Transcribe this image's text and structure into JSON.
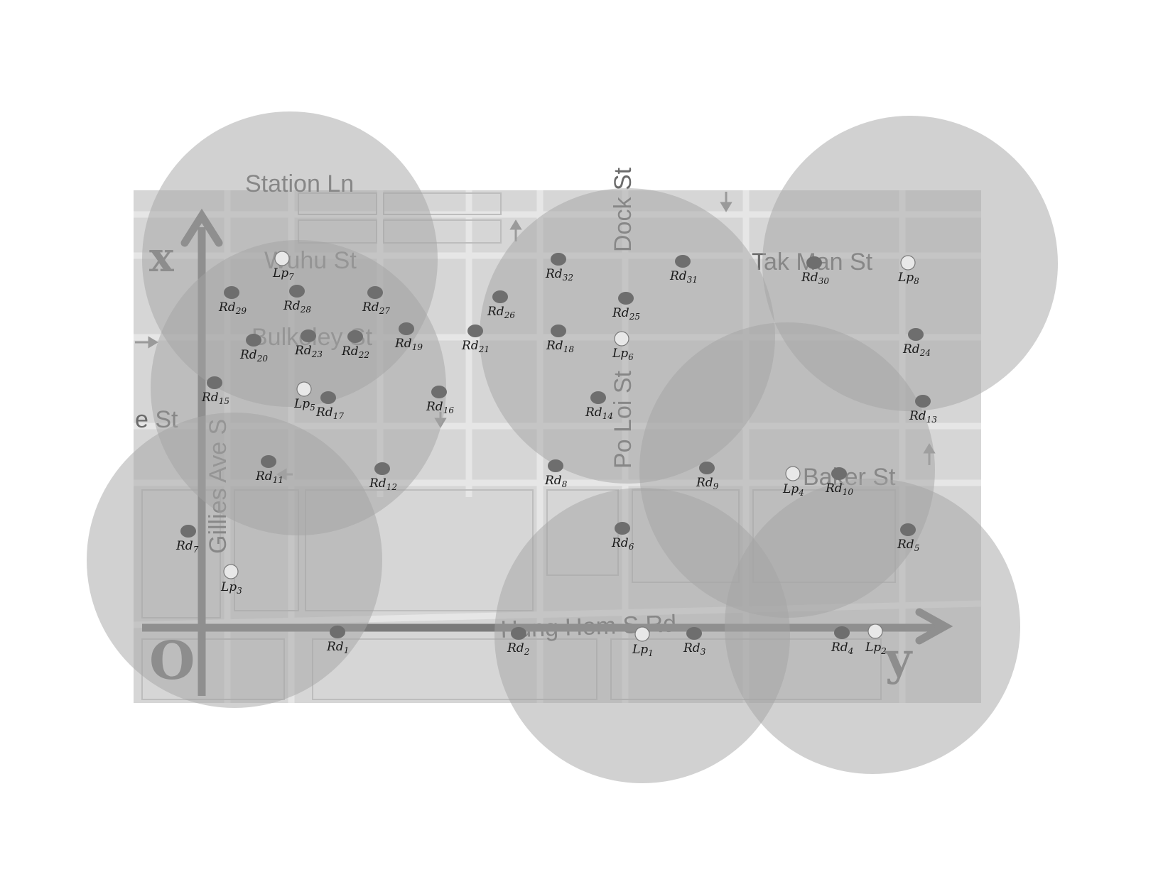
{
  "streets": {
    "wuhu": "Wuhu St",
    "tak_man": "Tak Man St",
    "bulkeley": "Bulkeley St",
    "dock": "Dock St",
    "po_loi": "Po Loi St",
    "gillies": "Gillies Ave S",
    "baker": "Baker St",
    "hung_hom": "Hung Hom S Rd",
    "station": "Station Ln",
    "left_st": "e St"
  },
  "axes": {
    "origin": "O",
    "vertical": "x",
    "horizontal": "y"
  },
  "colors": {
    "background": "#ffffff",
    "map": "#d6d6d6",
    "coverage_circle": "#a8a8a8",
    "road_node": "#6e6e6e",
    "lamp_post": "#e8e8e8",
    "label": "#1a1a1a"
  },
  "lamp_posts": [
    {
      "id": "Lp",
      "sub": "1"
    },
    {
      "id": "Lp",
      "sub": "2"
    },
    {
      "id": "Lp",
      "sub": "3"
    },
    {
      "id": "Lp",
      "sub": "4"
    },
    {
      "id": "Lp",
      "sub": "5"
    },
    {
      "id": "Lp",
      "sub": "6"
    },
    {
      "id": "Lp",
      "sub": "7"
    },
    {
      "id": "Lp",
      "sub": "8"
    }
  ],
  "road_nodes": [
    {
      "id": "Rd",
      "sub": "1"
    },
    {
      "id": "Rd",
      "sub": "2"
    },
    {
      "id": "Rd",
      "sub": "3"
    },
    {
      "id": "Rd",
      "sub": "4"
    },
    {
      "id": "Rd",
      "sub": "5"
    },
    {
      "id": "Rd",
      "sub": "6"
    },
    {
      "id": "Rd",
      "sub": "7"
    },
    {
      "id": "Rd",
      "sub": "8"
    },
    {
      "id": "Rd",
      "sub": "9"
    },
    {
      "id": "Rd",
      "sub": "10"
    },
    {
      "id": "Rd",
      "sub": "11"
    },
    {
      "id": "Rd",
      "sub": "12"
    },
    {
      "id": "Rd",
      "sub": "13"
    },
    {
      "id": "Rd",
      "sub": "14"
    },
    {
      "id": "Rd",
      "sub": "15"
    },
    {
      "id": "Rd",
      "sub": "16"
    },
    {
      "id": "Rd",
      "sub": "17"
    },
    {
      "id": "Rd",
      "sub": "18"
    },
    {
      "id": "Rd",
      "sub": "19"
    },
    {
      "id": "Rd",
      "sub": "20"
    },
    {
      "id": "Rd",
      "sub": "21"
    },
    {
      "id": "Rd",
      "sub": "22"
    },
    {
      "id": "Rd",
      "sub": "23"
    },
    {
      "id": "Rd",
      "sub": "24"
    },
    {
      "id": "Rd",
      "sub": "25"
    },
    {
      "id": "Rd",
      "sub": "26"
    },
    {
      "id": "Rd",
      "sub": "27"
    },
    {
      "id": "Rd",
      "sub": "28"
    },
    {
      "id": "Rd",
      "sub": "29"
    },
    {
      "id": "Rd",
      "sub": "30"
    },
    {
      "id": "Rd",
      "sub": "31"
    },
    {
      "id": "Rd",
      "sub": "32"
    }
  ]
}
